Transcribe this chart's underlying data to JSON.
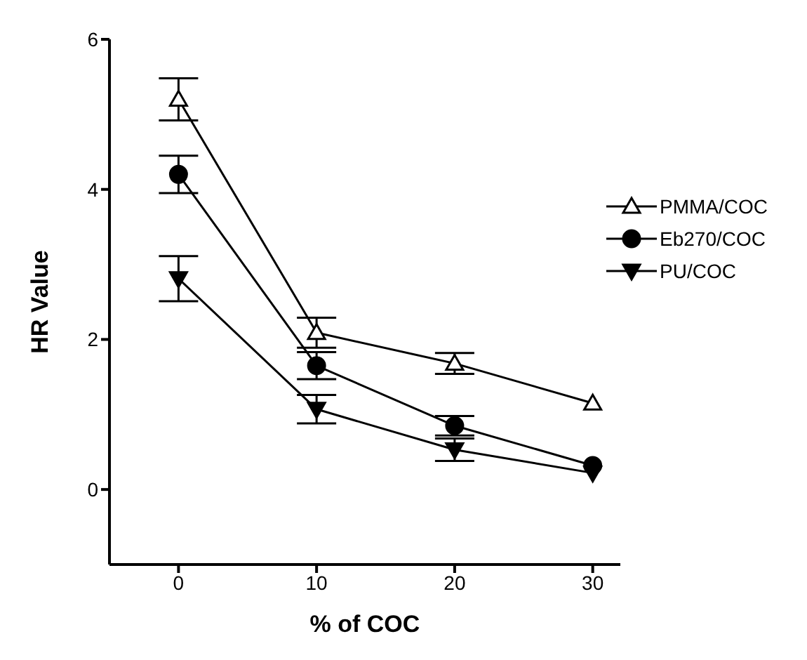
{
  "chart_data": {
    "type": "line",
    "xlabel": "% of COC",
    "ylabel": "HR Value",
    "x": [
      0,
      10,
      20,
      30
    ],
    "series": [
      {
        "name": "PMMA/COC",
        "color": "#000000",
        "marker": "triangle",
        "values": [
          5.2,
          2.09,
          1.68,
          1.15
        ],
        "errors": [
          0.28,
          0.2,
          0.14,
          null
        ]
      },
      {
        "name": "Eb270/COC",
        "color": "#000000",
        "marker": "circle",
        "values": [
          4.2,
          1.65,
          0.85,
          0.32
        ],
        "errors": [
          0.25,
          0.18,
          0.13,
          null
        ]
      },
      {
        "name": "PU/COC",
        "color": "#000000",
        "marker": "triangle-down",
        "values": [
          2.81,
          1.07,
          0.53,
          0.22
        ],
        "errors": [
          0.3,
          0.19,
          0.15,
          null
        ]
      }
    ],
    "xlim": [
      -5,
      32
    ],
    "xticks": [
      0,
      10,
      20,
      30
    ],
    "ylim": [
      -1,
      6
    ],
    "yticks": [
      0,
      2,
      4,
      6
    ],
    "grid": false,
    "legend": "right",
    "line_style": "solid"
  }
}
